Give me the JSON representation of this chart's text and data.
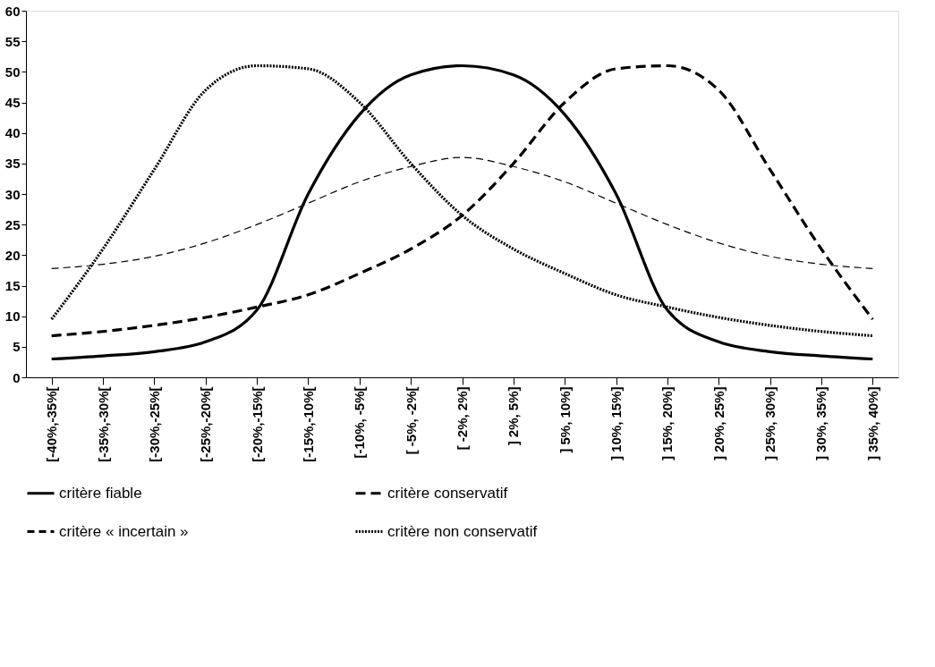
{
  "chart_data": {
    "type": "line",
    "categories": [
      "[-40%,-35%[",
      "[-35%,-30%[",
      "[-30%,-25%[",
      "[-25%,-20%[",
      "[-20%,-15%[",
      "[-15%,-10%[",
      "[-10%, -5%[",
      "[ -5%, -2%[",
      "[ -2%,  2%]",
      "]  2%,  5%]",
      "]  5%, 10%]",
      "] 10%, 15%]",
      "] 15%, 20%]",
      "] 20%, 25%]",
      "] 25%, 30%]",
      "] 30%, 35%]",
      "] 35%, 40%]"
    ],
    "series": [
      {
        "name": "critère fiable",
        "color": "#000000",
        "line_style": "solid",
        "values": [
          3,
          3.5,
          4.2,
          5.8,
          11,
          30,
          43,
          49.5,
          51,
          49.5,
          43,
          30,
          11,
          5.8,
          4.2,
          3.5,
          3
        ]
      },
      {
        "name": "critère conservatif",
        "color": "#000000",
        "line_style": "dashed",
        "values": [
          6.8,
          7.5,
          8.5,
          9.8,
          11.5,
          13.5,
          17,
          21,
          26.5,
          35,
          45,
          50.5,
          51,
          47,
          34,
          21,
          9.5
        ]
      },
      {
        "name": "critère « incertain »",
        "color": "#000000",
        "line_style": "dashed",
        "values": [
          17.8,
          18.5,
          19.8,
          22,
          25,
          28.5,
          32,
          34.5,
          36,
          34.5,
          32,
          28.5,
          25,
          22,
          19.8,
          18.5,
          17.8
        ]
      },
      {
        "name": "critère non conservatif",
        "color": "#000000",
        "line_style": "dotted",
        "values": [
          9.5,
          21,
          34,
          47,
          51,
          50.5,
          45,
          35,
          26.5,
          21,
          17,
          13.5,
          11.5,
          9.8,
          8.5,
          7.5,
          6.8
        ]
      }
    ],
    "ylim": [
      0,
      60
    ],
    "yticks": [
      0,
      5,
      10,
      15,
      20,
      25,
      30,
      35,
      40,
      45,
      50,
      55,
      60
    ],
    "grid": false,
    "legend": "bottom",
    "marker": "none"
  }
}
